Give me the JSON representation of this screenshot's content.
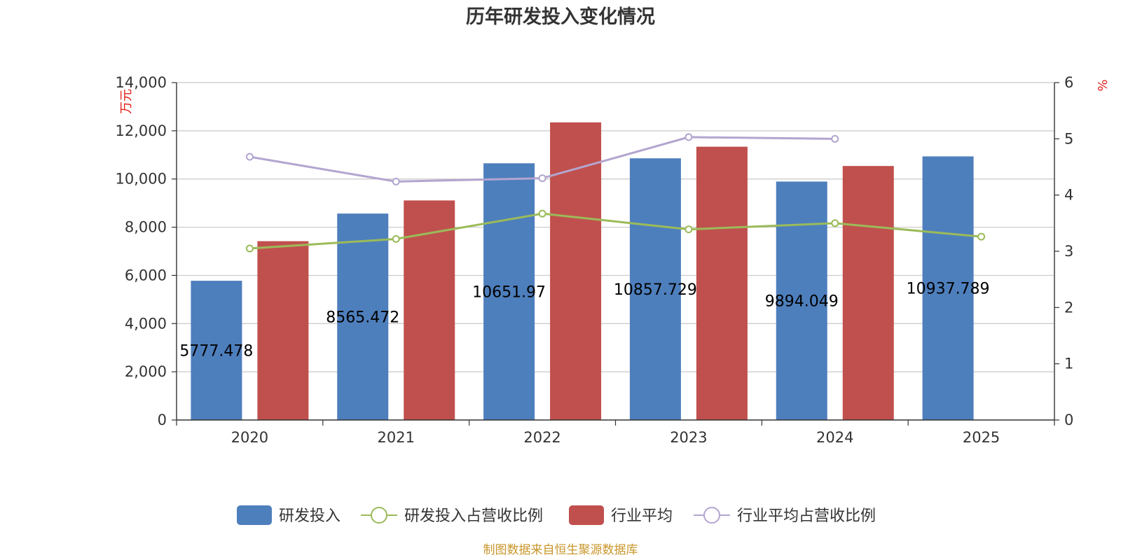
{
  "chart_data": {
    "type": "bar",
    "title": "历年研发投入变化情况",
    "categories": [
      "2020",
      "2021",
      "2022",
      "2023",
      "2024",
      "2025"
    ],
    "y_left": {
      "unit": "万元",
      "min": 0,
      "max": 14000,
      "ticks": [
        "0",
        "2,000",
        "4,000",
        "6,000",
        "8,000",
        "10,000",
        "12,000",
        "14,000"
      ]
    },
    "y_right": {
      "unit": "%",
      "min": 0,
      "max": 6,
      "ticks": [
        "0",
        "1",
        "2",
        "3",
        "4",
        "5",
        "6"
      ]
    },
    "series": [
      {
        "name": "研发投入",
        "kind": "bar",
        "axis": "left",
        "color": "#4e7fbd",
        "values": [
          5777.478,
          8565.472,
          10651.97,
          10857.729,
          9894.049,
          10937.789
        ],
        "labels": [
          "5777.478",
          "8565.472",
          "10651.97",
          "10857.729",
          "9894.049",
          "10937.789"
        ]
      },
      {
        "name": "研发投入占营收比例",
        "kind": "line",
        "axis": "right",
        "color": "#9bbb59",
        "values": [
          3.05,
          3.22,
          3.67,
          3.39,
          3.5,
          3.26
        ]
      },
      {
        "name": "行业平均",
        "kind": "bar",
        "axis": "left",
        "color": "#c0504d",
        "values": [
          7420,
          9110,
          12350,
          11340,
          10540,
          null
        ]
      },
      {
        "name": "行业平均占营收比例",
        "kind": "line",
        "axis": "right",
        "color": "#b3a5cf",
        "values": [
          4.68,
          4.24,
          4.3,
          5.03,
          5.0,
          null
        ]
      }
    ],
    "legend_position": "bottom",
    "grid": true
  },
  "source": "制图数据来自恒生聚源数据库"
}
